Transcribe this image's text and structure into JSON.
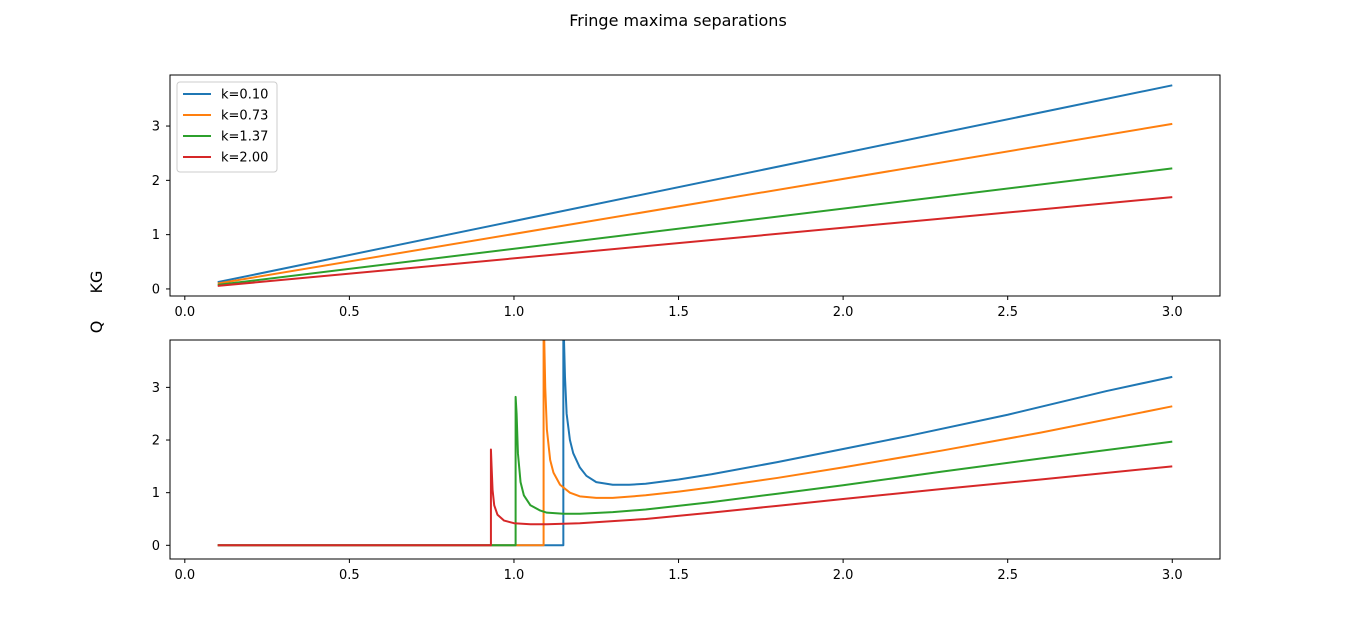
{
  "figure": {
    "title": "Fringe maxima separations",
    "ylabels": [
      "KG",
      "Q"
    ]
  },
  "colors": {
    "k010": "#1f77b4",
    "k073": "#ff7f0e",
    "k137": "#2ca02c",
    "k200": "#d62728"
  },
  "chart_data": [
    {
      "type": "line",
      "panel": "top",
      "xlim": [
        -0.045,
        3.145
      ],
      "ylim": [
        -0.13,
        3.94
      ],
      "xticks": [
        0.0,
        0.5,
        1.0,
        1.5,
        2.0,
        2.5,
        3.0
      ],
      "xtick_labels": [
        "0.0",
        "0.5",
        "1.0",
        "1.5",
        "2.0",
        "2.5",
        "3.0"
      ],
      "yticks": [
        0,
        1,
        2,
        3
      ],
      "ytick_labels": [
        "0",
        "1",
        "2",
        "3"
      ],
      "legend": {
        "position": "top-left",
        "entries": [
          "k=0.10",
          "k=0.73",
          "k=1.37",
          "k=2.00"
        ]
      },
      "series": [
        {
          "name": "k=0.10",
          "color": "#1f77b4",
          "x": [
            0.1,
            3.0
          ],
          "y": [
            0.125,
            3.75
          ]
        },
        {
          "name": "k=0.73",
          "color": "#ff7f0e",
          "x": [
            0.1,
            3.0
          ],
          "y": [
            0.101,
            3.04
          ]
        },
        {
          "name": "k=1.37",
          "color": "#2ca02c",
          "x": [
            0.1,
            3.0
          ],
          "y": [
            0.074,
            2.22
          ]
        },
        {
          "name": "k=2.00",
          "color": "#d62728",
          "x": [
            0.1,
            3.0
          ],
          "y": [
            0.056,
            1.69
          ]
        }
      ]
    },
    {
      "type": "line",
      "panel": "bottom",
      "xlim": [
        -0.045,
        3.145
      ],
      "ylim": [
        -0.26,
        3.9
      ],
      "xticks": [
        0.0,
        0.5,
        1.0,
        1.5,
        2.0,
        2.5,
        3.0
      ],
      "xtick_labels": [
        "0.0",
        "0.5",
        "1.0",
        "1.5",
        "2.0",
        "2.5",
        "3.0"
      ],
      "yticks": [
        0,
        1,
        2,
        3
      ],
      "ytick_labels": [
        "0",
        "1",
        "2",
        "3"
      ],
      "series": [
        {
          "name": "k=0.10",
          "color": "#1f77b4",
          "x": [
            0.1,
            1.15,
            1.15,
            1.152,
            1.155,
            1.16,
            1.17,
            1.18,
            1.2,
            1.22,
            1.25,
            1.3,
            1.35,
            1.4,
            1.5,
            1.6,
            1.8,
            2.0,
            2.2,
            2.5,
            2.8,
            3.0
          ],
          "y": [
            0,
            0,
            3.9,
            3.9,
            3.2,
            2.5,
            2.0,
            1.75,
            1.48,
            1.32,
            1.2,
            1.15,
            1.15,
            1.17,
            1.25,
            1.35,
            1.58,
            1.83,
            2.08,
            2.48,
            2.93,
            3.2
          ]
        },
        {
          "name": "k=0.73",
          "color": "#ff7f0e",
          "x": [
            0.1,
            1.09,
            1.09,
            1.092,
            1.095,
            1.1,
            1.11,
            1.12,
            1.14,
            1.17,
            1.2,
            1.25,
            1.3,
            1.4,
            1.5,
            1.6,
            1.8,
            2.0,
            2.3,
            2.6,
            3.0
          ],
          "y": [
            0,
            0,
            3.9,
            3.9,
            3.0,
            2.2,
            1.62,
            1.38,
            1.15,
            1.0,
            0.93,
            0.9,
            0.9,
            0.95,
            1.02,
            1.1,
            1.28,
            1.48,
            1.8,
            2.14,
            2.64
          ]
        },
        {
          "name": "k=1.37",
          "color": "#2ca02c",
          "x": [
            0.1,
            1.005,
            1.005,
            1.008,
            1.012,
            1.02,
            1.03,
            1.05,
            1.08,
            1.1,
            1.15,
            1.2,
            1.3,
            1.4,
            1.6,
            1.8,
            2.0,
            2.3,
            2.6,
            3.0
          ],
          "y": [
            0,
            0,
            2.82,
            2.5,
            1.75,
            1.2,
            0.95,
            0.76,
            0.66,
            0.62,
            0.6,
            0.6,
            0.63,
            0.68,
            0.82,
            0.98,
            1.14,
            1.4,
            1.65,
            1.97
          ]
        },
        {
          "name": "k=2.00",
          "color": "#d62728",
          "x": [
            0.1,
            0.93,
            0.93,
            0.932,
            0.935,
            0.94,
            0.95,
            0.97,
            1.0,
            1.05,
            1.1,
            1.2,
            1.3,
            1.4,
            1.6,
            1.8,
            2.0,
            2.3,
            2.6,
            3.0
          ],
          "y": [
            0,
            0,
            1.82,
            1.5,
            1.05,
            0.76,
            0.58,
            0.47,
            0.42,
            0.4,
            0.4,
            0.42,
            0.46,
            0.5,
            0.62,
            0.75,
            0.88,
            1.07,
            1.25,
            1.5
          ]
        }
      ]
    }
  ]
}
